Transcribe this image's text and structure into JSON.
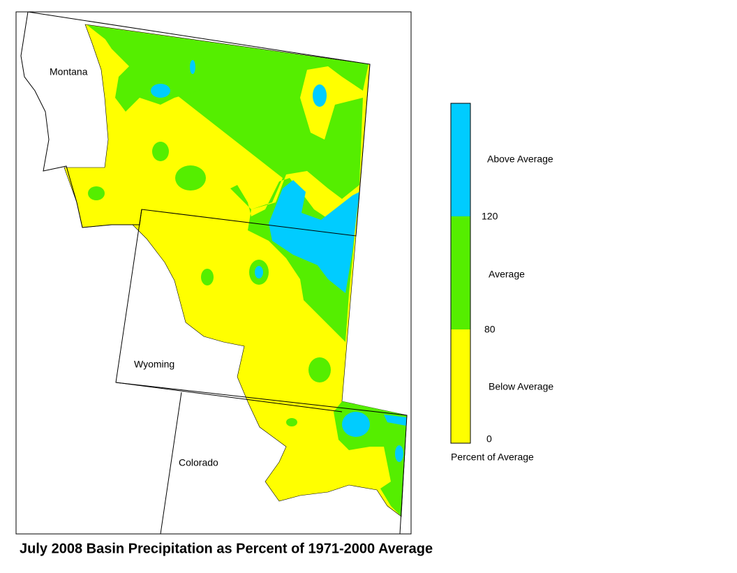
{
  "title": "July 2008 Basin Precipitation as Percent of 1971-2000 Average",
  "states": [
    "Montana",
    "Wyoming",
    "Colorado"
  ],
  "legend": {
    "title": "Percent of Average",
    "classes": [
      "Above Average",
      "Average",
      "Below Average"
    ],
    "ticks": [
      "120",
      "80",
      "0"
    ]
  }
}
